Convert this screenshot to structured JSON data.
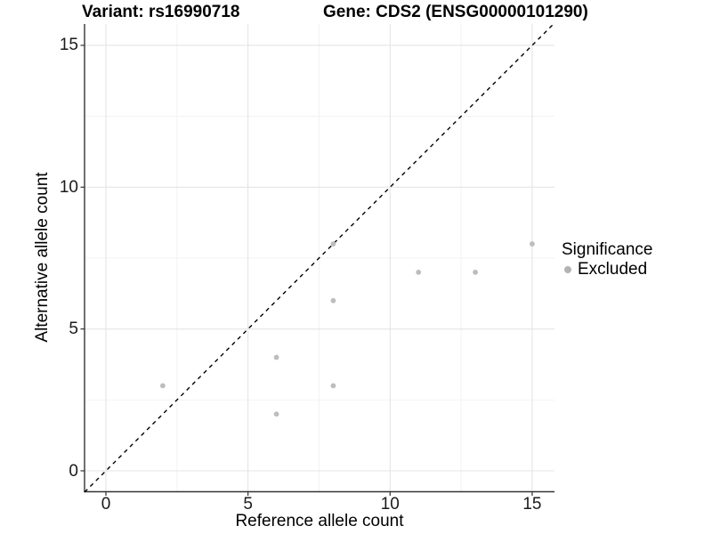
{
  "header": {
    "title_left": "Variant: rs16990718",
    "title_right": "Gene: CDS2 (ENSG00000101290)"
  },
  "chart_data": {
    "type": "scatter",
    "title_left": "Variant: rs16990718",
    "title_right": "Gene: CDS2 (ENSG00000101290)",
    "xlabel": "Reference allele count",
    "ylabel": "Alternative allele count",
    "xlim": [
      -0.75,
      15.75
    ],
    "ylim": [
      -0.75,
      15.75
    ],
    "x_ticks": [
      0,
      5,
      10,
      15
    ],
    "y_ticks": [
      0,
      5,
      10,
      15
    ],
    "grid": "major and minor gridlines, white background",
    "identity_line": {
      "style": "dashed",
      "color": "#000000",
      "from": [
        -0.75,
        -0.75
      ],
      "to": [
        15.75,
        15.75
      ]
    },
    "series": [
      {
        "name": "Excluded",
        "color": "#bdbdbd",
        "points": [
          [
            2,
            3
          ],
          [
            6,
            2
          ],
          [
            6,
            4
          ],
          [
            8,
            3
          ],
          [
            8,
            6
          ],
          [
            8,
            8
          ],
          [
            11,
            7
          ],
          [
            13,
            7
          ],
          [
            15,
            8
          ]
        ]
      }
    ],
    "legend": {
      "title": "Significance",
      "position": "right",
      "entries": [
        {
          "label": "Excluded",
          "color": "#b3b3b3"
        }
      ]
    }
  },
  "colors": {
    "background": "#ffffff",
    "grid_major": "#e4e4e4",
    "grid_minor": "#f1f1f1",
    "axis_line": "#333333",
    "tick_mark": "#333333",
    "point": "#bdbdbd",
    "dashed_line": "#000000",
    "text": "#000000"
  }
}
